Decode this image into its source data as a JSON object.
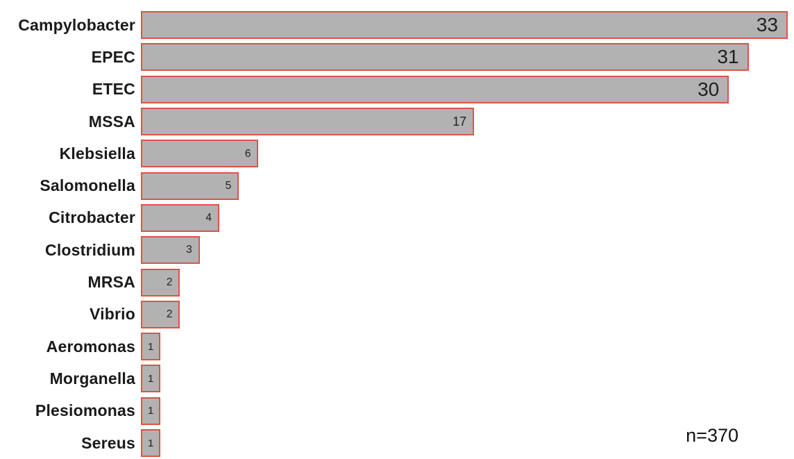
{
  "chart_data": {
    "type": "bar",
    "orientation": "horizontal",
    "title": "",
    "xlabel": "",
    "ylabel": "",
    "grid": false,
    "legend": false,
    "xlim": [
      0,
      33
    ],
    "categories": [
      "Campylobacter",
      "EPEC",
      "ETEC",
      "MSSA",
      "Klebsiella",
      "Salomonella",
      "Citrobacter",
      "Clostridium",
      "MRSA",
      "Vibrio",
      "Aeromonas",
      "Morganella",
      "Plesiomonas",
      "Sereus"
    ],
    "values": [
      33,
      31,
      30,
      17,
      6,
      5,
      4,
      3,
      2,
      2,
      1,
      1,
      1,
      1
    ],
    "data_labels_visible": true,
    "annotation": "n=370",
    "colors": {
      "bar_fill": "#b2b2b2",
      "bar_border": "#e1514b",
      "label_text": "#1a1a1a",
      "value_text": "#1f1f1f",
      "background": "#ffffff"
    }
  }
}
